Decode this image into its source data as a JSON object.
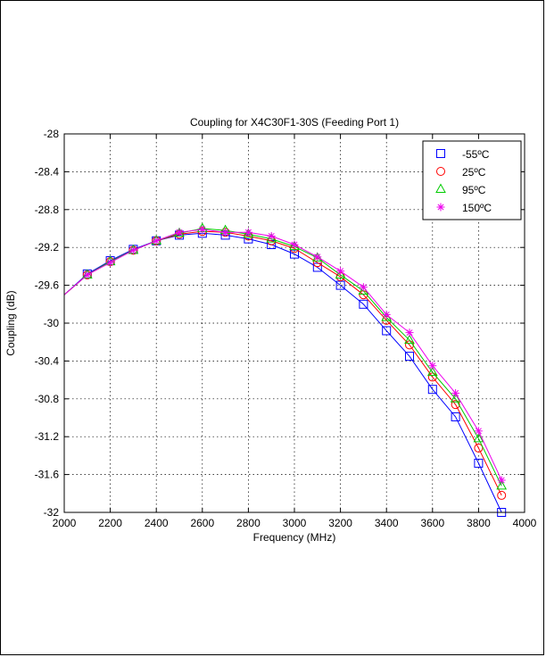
{
  "figure": {
    "title": "Coupling for X4C30F1-30S (Feeding Port 1)",
    "xlabel": "Frequency (MHz)",
    "ylabel": "Coupling (dB)"
  },
  "chart_data": {
    "type": "line",
    "title": "Coupling for X4C30F1-30S (Feeding Port 1)",
    "xlabel": "Frequency (MHz)",
    "ylabel": "Coupling (dB)",
    "xlim": [
      2000,
      4000
    ],
    "ylim": [
      -32,
      -28
    ],
    "xticks": [
      "2000",
      "2200",
      "2400",
      "2600",
      "2800",
      "3000",
      "3200",
      "3400",
      "3600",
      "3800",
      "4000"
    ],
    "yticks": [
      "-28",
      "-28.4",
      "-28.8",
      "-29.2",
      "-29.6",
      "-30",
      "-30.4",
      "-30.8",
      "-31.2",
      "-31.6",
      "-32"
    ],
    "grid": true,
    "legend_position": "top-right",
    "x": [
      2000,
      2100,
      2200,
      2300,
      2400,
      2500,
      2600,
      2700,
      2800,
      2900,
      3000,
      3100,
      3200,
      3300,
      3400,
      3500,
      3600,
      3700,
      3800,
      3900
    ],
    "series": [
      {
        "name": "-55ºC",
        "color": "#0000ff",
        "marker": "square",
        "values": [
          -29.7,
          -29.48,
          -29.34,
          -29.22,
          -29.13,
          -29.07,
          -29.05,
          -29.07,
          -29.11,
          -29.17,
          -29.27,
          -29.41,
          -29.6,
          -29.8,
          -30.08,
          -30.35,
          -30.7,
          -30.99,
          -31.48,
          -32.0
        ]
      },
      {
        "name": "25ºC",
        "color": "#ff0000",
        "marker": "circle",
        "values": [
          -29.7,
          -29.49,
          -29.35,
          -29.23,
          -29.13,
          -29.06,
          -29.03,
          -29.04,
          -29.08,
          -29.13,
          -29.21,
          -29.36,
          -29.51,
          -29.7,
          -29.97,
          -30.23,
          -30.57,
          -30.86,
          -31.32,
          -31.82
        ]
      },
      {
        "name": "95ºC",
        "color": "#00cc00",
        "marker": "triangle",
        "values": [
          -29.7,
          -29.49,
          -29.35,
          -29.23,
          -29.13,
          -29.05,
          -29.0,
          -29.02,
          -29.06,
          -29.11,
          -29.19,
          -29.31,
          -29.49,
          -29.66,
          -29.94,
          -30.18,
          -30.52,
          -30.8,
          -31.22,
          -31.72
        ]
      },
      {
        "name": "150ºC",
        "color": "#ee00ee",
        "marker": "star",
        "values": [
          -29.7,
          -29.49,
          -29.36,
          -29.23,
          -29.13,
          -29.04,
          -29.01,
          -29.04,
          -29.04,
          -29.08,
          -29.17,
          -29.3,
          -29.45,
          -29.62,
          -29.91,
          -30.1,
          -30.45,
          -30.74,
          -31.14,
          -31.66
        ]
      }
    ]
  }
}
